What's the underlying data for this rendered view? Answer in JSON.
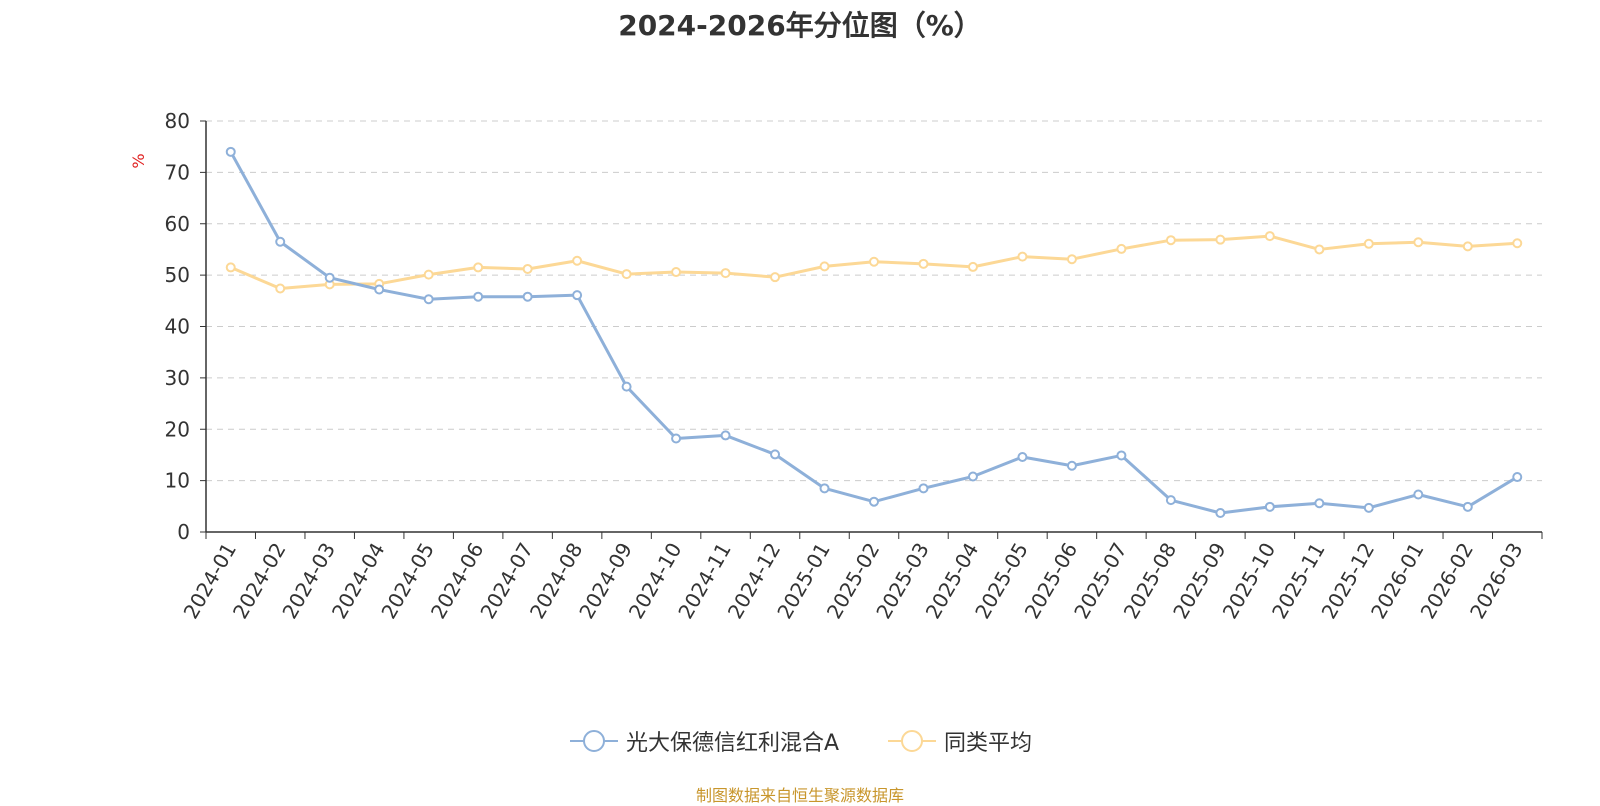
{
  "chart_data": {
    "type": "line",
    "title": "2024-2026年分位图（%）",
    "ylabel": "%",
    "xlabel": "",
    "ylim": [
      0,
      80
    ],
    "yticks": [
      0,
      10,
      20,
      30,
      40,
      50,
      60,
      70,
      80
    ],
    "grid": "horizontal dashed",
    "legend_position": "bottom-center",
    "categories": [
      "2024-01",
      "2024-02",
      "2024-03",
      "2024-04",
      "2024-05",
      "2024-06",
      "2024-07",
      "2024-08",
      "2024-09",
      "2024-10",
      "2024-11",
      "2024-12",
      "2025-01",
      "2025-02",
      "2025-03",
      "2025-04",
      "2025-05",
      "2025-06",
      "2025-07",
      "2025-08",
      "2025-09",
      "2025-10",
      "2025-11",
      "2025-12",
      "2026-01",
      "2026-02",
      "2026-03"
    ],
    "series": [
      {
        "name": "光大保德信红利混合A",
        "color": "#8eb0d9",
        "values": [
          74.0,
          56.5,
          49.5,
          47.2,
          45.3,
          45.8,
          45.8,
          46.1,
          28.3,
          18.2,
          18.8,
          15.1,
          8.5,
          5.9,
          8.5,
          10.8,
          14.6,
          12.9,
          14.9,
          6.2,
          3.7,
          4.9,
          5.6,
          4.7,
          7.3,
          4.9,
          10.7
        ]
      },
      {
        "name": "同类平均",
        "color": "#fcd896",
        "values": [
          51.5,
          47.4,
          48.2,
          48.3,
          50.1,
          51.5,
          51.2,
          52.8,
          50.2,
          50.6,
          50.4,
          49.6,
          51.7,
          52.6,
          52.2,
          51.6,
          53.6,
          53.1,
          55.1,
          56.8,
          56.9,
          57.6,
          55.0,
          56.1,
          56.4,
          55.6,
          56.2
        ]
      }
    ]
  },
  "footer": {
    "source": "制图数据来自恒生聚源数据库"
  }
}
